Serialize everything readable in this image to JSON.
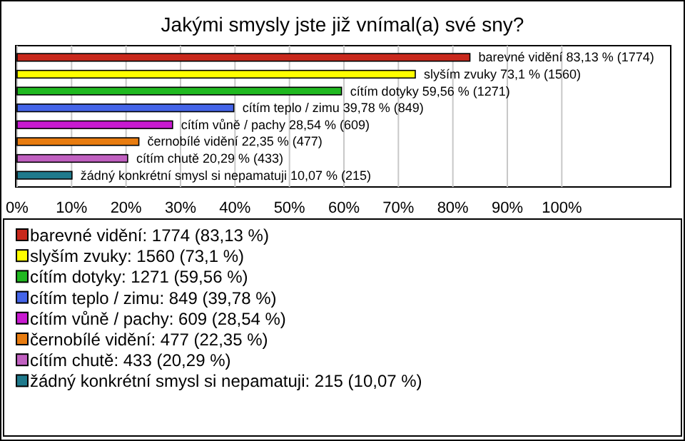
{
  "chart_data": {
    "type": "bar",
    "orientation": "horizontal",
    "title": "Jakými smysly jste již vnímal(a) své sny?",
    "categories": [
      "barevné vidění",
      "slyším zvuky",
      "cítím dotyky",
      "cítím teplo / zimu",
      "cítím vůně / pachy",
      "černobílé vidění",
      "cítím chutě",
      "žádný konkrétní smysl si nepamatuji"
    ],
    "values": [
      83.13,
      73.1,
      59.56,
      39.78,
      28.54,
      22.35,
      20.29,
      10.07
    ],
    "colors": [
      "#c8281c",
      "#ffff00",
      "#20b820",
      "#4464e8",
      "#c81ad0",
      "#e87c10",
      "#c060c0",
      "#1f7a8c"
    ],
    "value_labels": [
      "83,13 % (1774)",
      "73,1 % (1560)",
      "59,56 % (1271)",
      "39,78 % (849)",
      "28,54 % (609)",
      "22,35 % (477)",
      "20,29 % (433)",
      "10,07 % (215)"
    ],
    "xlim": [
      0,
      120
    ],
    "xticks": [
      {
        "value": 0,
        "label": "0%"
      },
      {
        "value": 10,
        "label": "10%"
      },
      {
        "value": 20,
        "label": "20%"
      },
      {
        "value": 30,
        "label": "30%"
      },
      {
        "value": 40,
        "label": "40%"
      },
      {
        "value": 50,
        "label": "50%"
      },
      {
        "value": 60,
        "label": "60%"
      },
      {
        "value": 70,
        "label": "70%"
      },
      {
        "value": 80,
        "label": "80%"
      },
      {
        "value": 90,
        "label": "90%"
      },
      {
        "value": 100,
        "label": "100%"
      }
    ],
    "grid": "x",
    "annotations": [
      "barevné vidění: 1774 (83,13 %)",
      "slyším zvuky: 1560 (73,1 %)",
      "cítím dotyky: 1271 (59,56 %)",
      "cítím teplo / zimu: 849 (39,78 %)",
      "cítím vůně / pachy: 609 (28,54 %)",
      "černobílé vidění: 477 (22,35 %)",
      "cítím chutě: 433 (20,29 %)",
      "žádný konkrétní smysl si nepamatuji: 215 (10,07 %)"
    ]
  }
}
